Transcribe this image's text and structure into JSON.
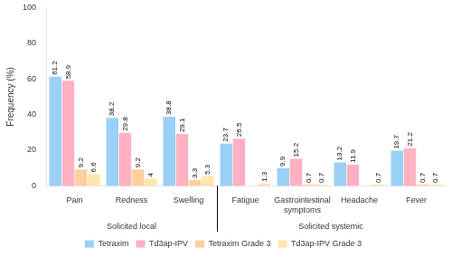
{
  "chart_data": {
    "type": "bar",
    "categories": [
      "Pain",
      "Redness",
      "Swelling",
      "Fatigue",
      "Gastrointestinal\nsymptoms",
      "Headache",
      "Fever"
    ],
    "series": [
      {
        "name": "Tetraxim",
        "values": [
          61.2,
          38.2,
          38.8,
          23.7,
          9.9,
          13.2,
          19.7
        ]
      },
      {
        "name": "Td3ap-IPV",
        "values": [
          58.9,
          29.8,
          29.1,
          26.5,
          15.2,
          11.9,
          21.2
        ]
      },
      {
        "name": "Tetraxim Grade 3",
        "values": [
          9.2,
          9.2,
          3.3,
          0.0,
          0.7,
          0.0,
          0.7
        ],
        "value_labels": [
          "9.2",
          "9.2",
          "3.3",
          null,
          "0.7",
          null,
          "0.7"
        ]
      },
      {
        "name": "Td3ap-IPV Grade 3",
        "values": [
          6.6,
          4.0,
          5.3,
          1.3,
          0.7,
          0.7,
          0.7
        ]
      }
    ],
    "y_label": "Frequency (%)",
    "ylim": [
      0,
      100
    ],
    "yticks": [
      0,
      20,
      40,
      60,
      80,
      100
    ],
    "grid": false,
    "legend": "bottom",
    "data_labels": true,
    "annotations": [
      {
        "text": "Solicited local",
        "categories": [
          "Pain",
          "Redness",
          "Swelling"
        ]
      },
      {
        "text": "Solicited systemic",
        "categories": [
          "Fatigue",
          "Gastrointestinal\nsymptoms",
          "Headache",
          "Fever"
        ]
      }
    ]
  }
}
